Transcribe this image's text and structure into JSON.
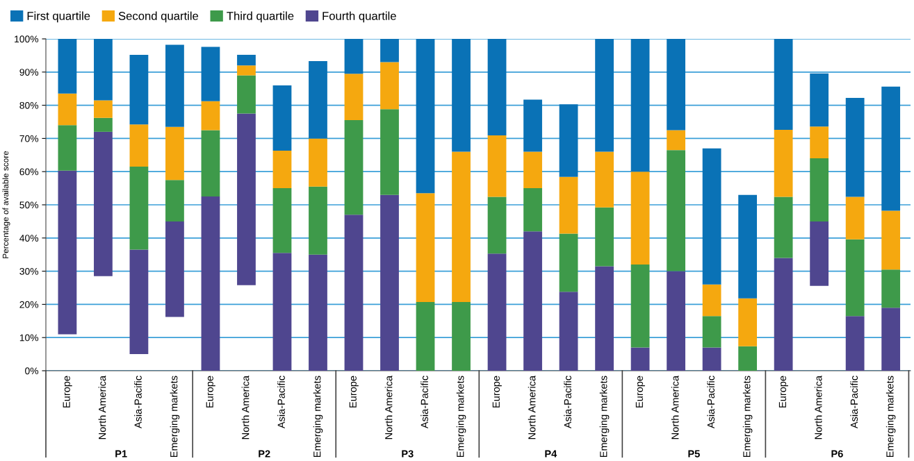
{
  "chart_data": {
    "type": "bar",
    "ylabel": "Percentage of available score",
    "categories": [
      "Europe",
      "North America",
      "Asia-Pacific",
      "Emerging markets",
      "Europe",
      "North America",
      "Asia-Pacific",
      "Emerging markets",
      "Europe",
      "North America",
      "Asia-Pacific",
      "Emerging markets",
      "Europe",
      "North America",
      "Asia-Pacific",
      "Emerging markets",
      "Europe",
      "North America",
      "Asia-Pacific",
      "Emerging markets",
      "Europe",
      "North America",
      "Asia-Pacific",
      "Emerging markets"
    ],
    "series": [
      {
        "name": "Fourth quartile",
        "color": "#4f468f",
        "base": [
          11,
          28.5,
          5,
          16.2,
          0,
          25.8,
          0,
          0,
          0,
          0,
          null,
          null,
          0,
          0,
          0,
          0,
          0,
          0,
          0,
          null,
          0,
          25.6,
          0,
          0
        ],
        "values": [
          49.3,
          43.5,
          31.5,
          28.8,
          52.5,
          51.7,
          35.5,
          35,
          47,
          53,
          null,
          null,
          35.3,
          42,
          23.8,
          31.5,
          7,
          30,
          7,
          null,
          34,
          19.4,
          16.5,
          19
        ]
      },
      {
        "name": "Third quartile",
        "color": "#3e9a4a",
        "base": [
          60.3,
          72,
          36.5,
          45,
          52.5,
          77.5,
          35.5,
          35,
          47,
          53,
          0,
          0,
          35.3,
          42,
          23.8,
          31.5,
          7,
          30,
          7,
          0,
          34,
          45,
          16.5,
          19
        ],
        "values": [
          13.7,
          4.2,
          25,
          12.5,
          20,
          11.5,
          19.5,
          20.5,
          28.5,
          25.8,
          20.7,
          20.7,
          17.1,
          13,
          17.5,
          17.7,
          25,
          36.5,
          9.5,
          7.4,
          18.4,
          19,
          23.1,
          11.5
        ]
      },
      {
        "name": "Second quartile",
        "color": "#f5a80f",
        "base": [
          74,
          76.2,
          61.5,
          57.5,
          72.5,
          89,
          55,
          55.5,
          75.5,
          78.8,
          20.7,
          20.7,
          52.4,
          55,
          41.3,
          49.2,
          32,
          66.5,
          16.5,
          7.4,
          52.4,
          64,
          39.6,
          30.5
        ],
        "values": [
          9.5,
          5.3,
          12.7,
          16,
          8.7,
          3,
          11.3,
          14.5,
          14,
          14.2,
          32.8,
          45.3,
          18.5,
          11,
          17.1,
          16.8,
          28,
          6,
          9.5,
          14.4,
          20.2,
          9.6,
          12.8,
          17.7
        ]
      },
      {
        "name": "First quartile",
        "color": "#0a72b6",
        "base": [
          83.5,
          81.5,
          74.2,
          73.5,
          81.2,
          92,
          66.3,
          70,
          89.5,
          93,
          53.5,
          66,
          70.9,
          66,
          58.4,
          66,
          60,
          72.5,
          26,
          21.8,
          72.6,
          73.6,
          52.4,
          48.2
        ],
        "values": [
          16.5,
          18.5,
          21,
          24.7,
          16.4,
          3.2,
          19.7,
          23.3,
          10.5,
          7,
          46.5,
          34,
          29.1,
          15.7,
          21.9,
          34,
          40,
          27.5,
          41,
          31.2,
          27.4,
          16,
          29.8,
          37.4
        ]
      }
    ],
    "ylim": [
      0,
      100
    ],
    "yticks": [
      {
        "value": 0,
        "label": "0%"
      },
      {
        "value": 10,
        "label": "10%"
      },
      {
        "value": 20,
        "label": "20%"
      },
      {
        "value": 30,
        "label": "30%"
      },
      {
        "value": 40,
        "label": "40%"
      },
      {
        "value": 50,
        "label": "50%"
      },
      {
        "value": 60,
        "label": "60%"
      },
      {
        "value": 70,
        "label": "70%"
      },
      {
        "value": 80,
        "label": "80%"
      },
      {
        "value": 90,
        "label": "90%"
      },
      {
        "value": 100,
        "label": "100%"
      }
    ],
    "grid": "y",
    "legend": "top left",
    "annotations": [
      "P1",
      "P2",
      "P3",
      "P4",
      "P5",
      "P6"
    ]
  }
}
